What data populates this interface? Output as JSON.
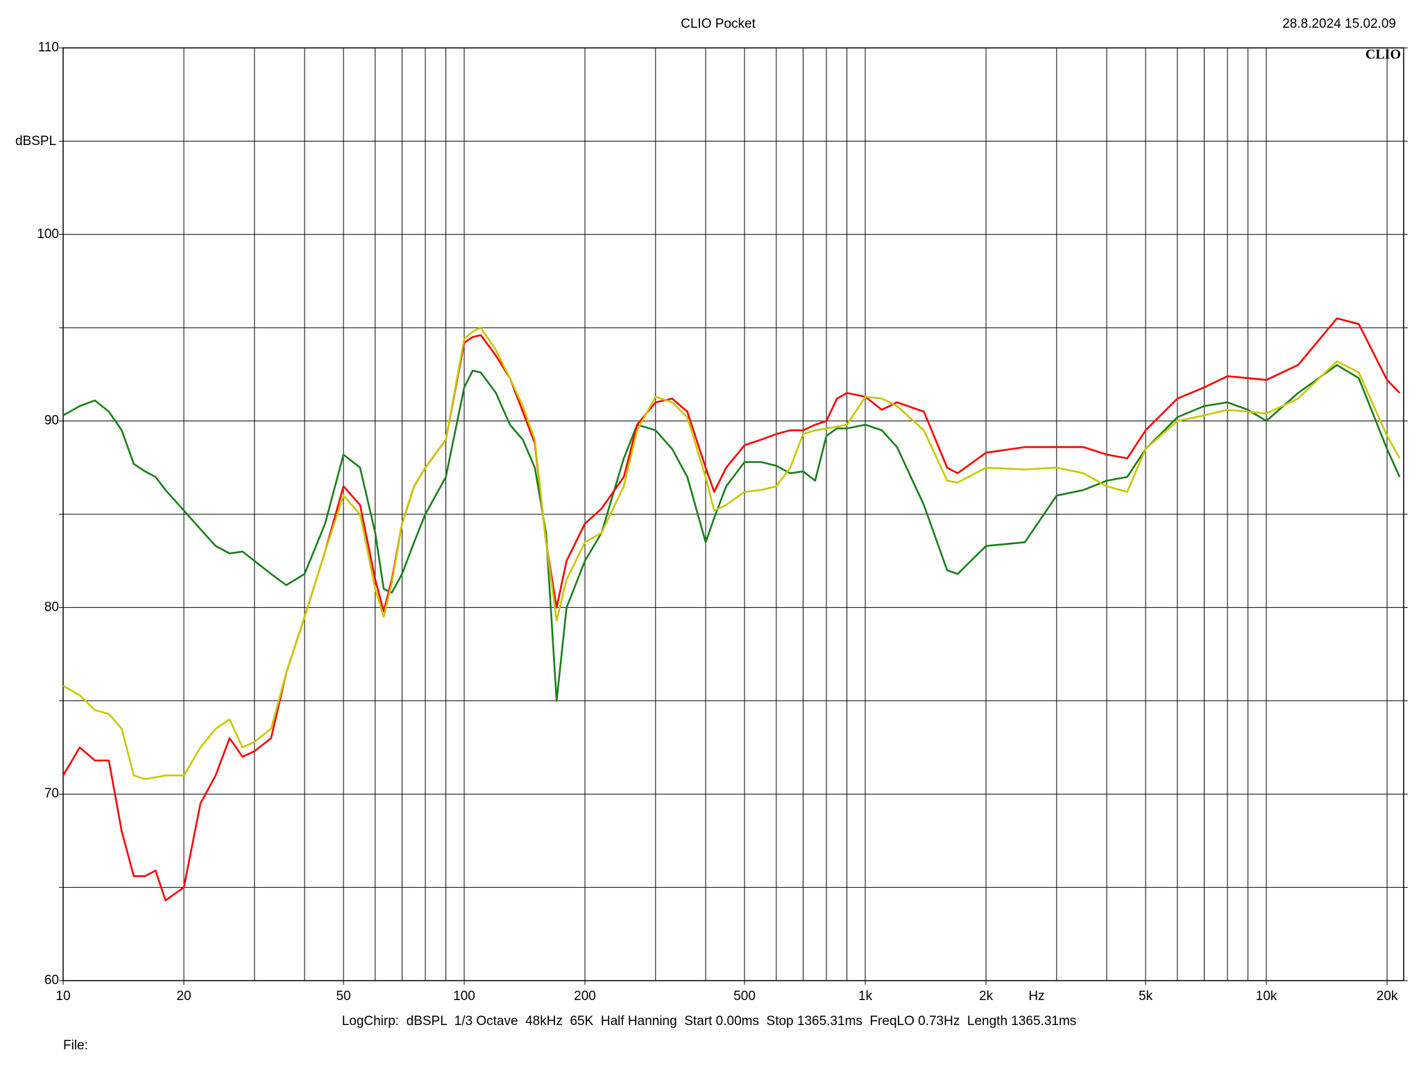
{
  "chart_data": {
    "type": "line",
    "title": "CLIO Pocket",
    "date": "28.8.2024 15.02.09",
    "logo": "CLIO",
    "y_label": "dBSPL",
    "x_label": "Hz",
    "footer": "LogChirp:  dBSPL  1/3 Octave  48kHz  65K  Half Hanning  Start 0.00ms  Stop 1365.31ms  FreqLO 0.73Hz  Length 1365.31ms",
    "file_label": "File:",
    "log_x": true,
    "grid": true,
    "xlim": [
      10,
      22000
    ],
    "ylim": [
      60,
      110
    ],
    "xticks": [
      10,
      20,
      50,
      100,
      200,
      500,
      {
        "value": 1000,
        "label": "1k"
      },
      {
        "value": 2000,
        "label": "2k"
      },
      {
        "value": 5000,
        "label": "5k"
      },
      {
        "value": 10000,
        "label": "10k"
      },
      {
        "value": 20000,
        "label": "20k"
      }
    ],
    "xgrid": [
      10,
      20,
      30,
      40,
      50,
      60,
      70,
      80,
      90,
      100,
      200,
      300,
      400,
      500,
      600,
      700,
      800,
      900,
      1000,
      2000,
      3000,
      4000,
      5000,
      6000,
      7000,
      8000,
      9000,
      10000,
      20000
    ],
    "yticks": [
      60,
      70,
      80,
      90,
      100,
      110
    ],
    "ygrid": [
      60,
      65,
      70,
      75,
      80,
      85,
      90,
      95,
      100,
      105,
      110
    ],
    "x": [
      10,
      11,
      12,
      13,
      14,
      15,
      16,
      17,
      18,
      20,
      22,
      24,
      26,
      28,
      30,
      33,
      36,
      40,
      45,
      50,
      55,
      60,
      63,
      66,
      70,
      75,
      80,
      90,
      100,
      105,
      110,
      120,
      130,
      140,
      150,
      160,
      170,
      180,
      200,
      220,
      250,
      270,
      300,
      330,
      360,
      400,
      420,
      450,
      500,
      550,
      600,
      650,
      700,
      750,
      800,
      850,
      900,
      1000,
      1100,
      1200,
      1400,
      1600,
      1700,
      2000,
      2500,
      3000,
      3500,
      4000,
      4500,
      5000,
      6000,
      7000,
      8000,
      9000,
      10000,
      12000,
      15000,
      17000,
      20000,
      21500
    ],
    "series": [
      {
        "color": "#1a7f1a",
        "values": [
          90.3,
          90.8,
          91.1,
          90.5,
          89.5,
          87.7,
          87.3,
          87.0,
          86.3,
          85.2,
          84.2,
          83.3,
          82.9,
          83.0,
          82.5,
          81.8,
          81.2,
          81.8,
          84.5,
          88.2,
          87.5,
          84,
          81,
          80.8,
          81.8,
          83.5,
          85,
          87,
          91.8,
          92.7,
          92.6,
          91.5,
          89.8,
          89,
          87.5,
          84,
          75,
          80,
          82.5,
          84,
          88,
          89.8,
          89.5,
          88.5,
          87,
          83.5,
          84.8,
          86.5,
          87.8,
          87.8,
          87.6,
          87.2,
          87.3,
          86.8,
          89.2,
          89.6,
          89.6,
          89.8,
          89.5,
          88.6,
          85.5,
          82,
          81.8,
          83.3,
          83.5,
          86,
          86.3,
          86.8,
          87,
          88.5,
          90.2,
          90.8,
          91.0,
          90.6,
          90,
          91.5,
          93,
          92.3,
          88.5,
          87
        ]
      },
      {
        "color": "#ff0000",
        "values": [
          71.0,
          72.5,
          71.8,
          71.8,
          68,
          65.6,
          65.6,
          65.9,
          64.3,
          65,
          69.5,
          71,
          73,
          72,
          72.3,
          73,
          76.5,
          79.5,
          83,
          86.5,
          85.5,
          81.5,
          79.8,
          81.5,
          84.5,
          86.5,
          87.5,
          89,
          94.2,
          94.5,
          94.6,
          93.5,
          92.3,
          90.5,
          88.8,
          83.5,
          80,
          82.5,
          84.5,
          85.3,
          87,
          89.8,
          91,
          91.2,
          90.5,
          87.5,
          86.2,
          87.5,
          88.7,
          89.0,
          89.3,
          89.5,
          89.5,
          89.8,
          90,
          91.2,
          91.5,
          91.3,
          90.6,
          91,
          90.5,
          87.5,
          87.2,
          88.3,
          88.6,
          88.6,
          88.6,
          88.2,
          88.0,
          89.5,
          91.2,
          91.8,
          92.4,
          92.3,
          92.2,
          93,
          95.5,
          95.2,
          92.2,
          91.5
        ]
      },
      {
        "color": "#c8c800",
        "values": [
          75.8,
          75.3,
          74.5,
          74.3,
          73.5,
          71,
          70.8,
          70.9,
          71,
          71,
          72.5,
          73.5,
          74,
          72.5,
          72.8,
          73.5,
          76.5,
          79.5,
          83,
          86,
          85,
          81,
          79.5,
          81.3,
          84.5,
          86.5,
          87.5,
          89,
          94.4,
          94.8,
          95,
          93.8,
          92.3,
          90.8,
          89,
          83.5,
          79.3,
          81.5,
          83.5,
          84,
          86.5,
          89.5,
          91.3,
          91,
          90.2,
          87,
          85.2,
          85.5,
          86.2,
          86.3,
          86.5,
          87.5,
          89.3,
          89.5,
          89.6,
          89.7,
          89.8,
          91.3,
          91.2,
          90.8,
          89.5,
          86.8,
          86.7,
          87.5,
          87.4,
          87.5,
          87.2,
          86.5,
          86.2,
          88.5,
          90,
          90.3,
          90.6,
          90.5,
          90.4,
          91.2,
          93.2,
          92.6,
          89.2,
          88
        ]
      }
    ]
  }
}
